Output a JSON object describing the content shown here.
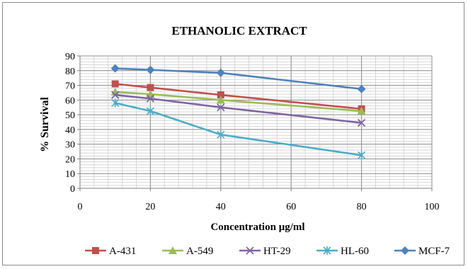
{
  "chart_data": {
    "type": "line",
    "title": "ETHANOLIC EXTRACT",
    "xlabel": "Concentration μg/ml",
    "ylabel": "% Survival",
    "x": [
      10,
      20,
      40,
      80
    ],
    "xlim": [
      0,
      100
    ],
    "ylim": [
      0,
      90
    ],
    "xticks": [
      0,
      20,
      40,
      60,
      80,
      100
    ],
    "yticks": [
      0,
      10,
      20,
      30,
      40,
      50,
      60,
      70,
      80,
      90
    ],
    "grid": true,
    "legend_position": "bottom",
    "series": [
      {
        "name": "A-431",
        "values": [
          71,
          68.5,
          63.5,
          54
        ],
        "color": "#c0504d",
        "marker": "square"
      },
      {
        "name": "A-549",
        "values": [
          65.5,
          64,
          60,
          52.5
        ],
        "color": "#9bbb59",
        "marker": "triangle"
      },
      {
        "name": "HT-29",
        "values": [
          63.5,
          61,
          55,
          44.5
        ],
        "color": "#8064a2",
        "marker": "x"
      },
      {
        "name": "HL-60",
        "values": [
          58,
          52.5,
          36.5,
          22.5
        ],
        "color": "#4bacc6",
        "marker": "star"
      },
      {
        "name": "MCF-7",
        "values": [
          81.5,
          80.5,
          78.5,
          67.5
        ],
        "color": "#4f81bd",
        "marker": "diamond"
      }
    ]
  }
}
